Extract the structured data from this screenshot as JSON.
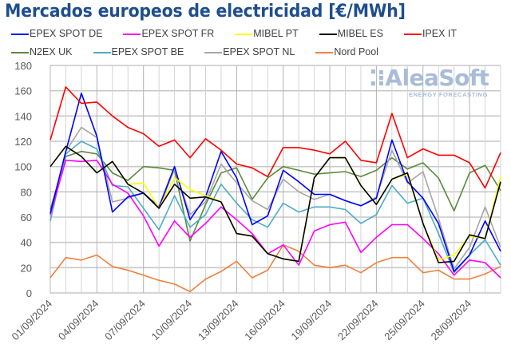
{
  "chart_data": {
    "type": "line",
    "title": "Mercados europeos de electricidad [€/MWh]",
    "xlabel": "",
    "ylabel": "",
    "ylim": [
      0,
      180
    ],
    "yticks": [
      0,
      20,
      40,
      60,
      80,
      100,
      120,
      140,
      160,
      180
    ],
    "grid": true,
    "legend_placement": "top",
    "x": [
      "01/09/2024",
      "02/09/2024",
      "03/09/2024",
      "04/09/2024",
      "05/09/2024",
      "06/09/2024",
      "07/09/2024",
      "08/09/2024",
      "09/09/2024",
      "10/09/2024",
      "11/09/2024",
      "12/09/2024",
      "13/09/2024",
      "14/09/2024",
      "15/09/2024",
      "16/09/2024",
      "17/09/2024",
      "18/09/2024",
      "19/09/2024",
      "20/09/2024",
      "21/09/2024",
      "22/09/2024",
      "23/09/2024",
      "24/09/2024",
      "25/09/2024",
      "26/09/2024",
      "27/09/2024",
      "28/09/2024",
      "29/09/2024",
      "30/09/2024"
    ],
    "xtick_labels": [
      "01/09/2024",
      "04/09/2024",
      "07/09/2024",
      "10/09/2024",
      "13/09/2024",
      "16/09/2024",
      "19/09/2024",
      "22/09/2024",
      "25/09/2024",
      "28/09/2024"
    ],
    "series": [
      {
        "name": "N2EX UK",
        "color": "#5b8a3c",
        "values": [
          66,
          108,
          112,
          110,
          95,
          89,
          100,
          99,
          97,
          41,
          70,
          95,
          99,
          74,
          91,
          100,
          97,
          94,
          95,
          96,
          92,
          97,
          107,
          98,
          103,
          91,
          65,
          95,
          101,
          81
        ]
      },
      {
        "name": "EPEX SPOT BE",
        "color": "#4bacc6",
        "values": [
          57,
          110,
          120,
          114,
          85,
          84,
          67,
          50,
          77,
          52,
          62,
          86,
          71,
          58,
          52,
          71,
          64,
          68,
          68,
          66,
          55,
          62,
          85,
          71,
          75,
          47,
          16,
          30,
          42,
          22
        ]
      },
      {
        "name": "EPEX SPOT NL",
        "color": "#a6a6a6",
        "values": [
          60,
          112,
          131,
          123,
          72,
          75,
          79,
          67,
          98,
          62,
          72,
          102,
          87,
          73,
          66,
          90,
          80,
          74,
          78,
          73,
          69,
          76,
          113,
          87,
          96,
          59,
          19,
          36,
          68,
          36
        ]
      },
      {
        "name": "Nord Pool",
        "color": "#f0803c",
        "values": [
          12,
          28,
          26,
          30,
          21,
          18,
          14,
          10,
          7,
          1,
          11,
          17,
          25,
          12,
          18,
          38,
          33,
          22,
          20,
          22,
          16,
          24,
          28,
          28,
          16,
          18,
          11,
          11,
          15,
          21
        ]
      },
      {
        "name": "EPEX SPOT FR",
        "color": "#ff00ff",
        "values": [
          62,
          105,
          104,
          105,
          86,
          79,
          61,
          37,
          57,
          44,
          55,
          68,
          58,
          47,
          31,
          38,
          22,
          49,
          54,
          56,
          32,
          44,
          54,
          54,
          43,
          31,
          14,
          26,
          24,
          12
        ]
      },
      {
        "name": "EPEX SPOT DE",
        "color": "#0000ff",
        "values": [
          63,
          112,
          158,
          124,
          64,
          76,
          79,
          68,
          100,
          58,
          76,
          112,
          91,
          54,
          61,
          97,
          88,
          78,
          78,
          73,
          69,
          75,
          121,
          88,
          75,
          55,
          17,
          30,
          57,
          33
        ]
      },
      {
        "name": "MIBEL PT",
        "color": "#ffff00",
        "values": [
          100,
          116,
          108,
          95,
          104,
          86,
          87,
          67,
          91,
          82,
          77,
          72,
          47,
          45,
          31,
          27,
          25,
          91,
          107,
          107,
          85,
          70,
          90,
          94,
          55,
          26,
          30,
          45,
          43,
          92
        ]
      },
      {
        "name": "MIBEL ES",
        "color": "#000000",
        "values": [
          100,
          116,
          108,
          95,
          104,
          86,
          79,
          67,
          86,
          75,
          76,
          72,
          47,
          45,
          31,
          27,
          25,
          91,
          107,
          107,
          85,
          70,
          90,
          95,
          55,
          24,
          25,
          46,
          43,
          88
        ]
      },
      {
        "name": "IPEX IT",
        "color": "#ff0000",
        "values": [
          121,
          163,
          150,
          151,
          140,
          131,
          126,
          116,
          121,
          107,
          122,
          113,
          102,
          99,
          92,
          115,
          115,
          113,
          110,
          120,
          105,
          103,
          142,
          107,
          114,
          109,
          109,
          103,
          83,
          111
        ]
      }
    ]
  },
  "legend": [
    {
      "name": "EPEX SPOT DE",
      "color": "#0000ff"
    },
    {
      "name": "EPEX SPOT FR",
      "color": "#ff00ff"
    },
    {
      "name": "MIBEL PT",
      "color": "#ffff00"
    },
    {
      "name": "MIBEL ES",
      "color": "#000000"
    },
    {
      "name": "IPEX IT",
      "color": "#ff0000"
    },
    {
      "name": "N2EX UK",
      "color": "#5b8a3c"
    },
    {
      "name": "EPEX SPOT BE",
      "color": "#4bacc6"
    },
    {
      "name": "EPEX SPOT NL",
      "color": "#a6a6a6"
    },
    {
      "name": "Nord Pool",
      "color": "#f0803c"
    }
  ],
  "logo": {
    "name": "AleaSoft",
    "tagline": "ENERGY FORECASTING"
  }
}
